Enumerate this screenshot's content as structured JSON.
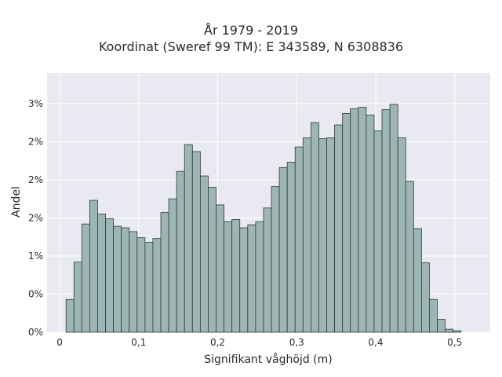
{
  "chart_data": {
    "type": "bar",
    "title": "År 1979 - 2019",
    "subtitle": "Koordinat (Sweref 99 TM): E 343589, N 6308836",
    "xlabel": "Signifikant våghöjd (m)",
    "ylabel": "Andel",
    "xlim": [
      -0.016,
      0.545
    ],
    "ylim": [
      0,
      0.034
    ],
    "grid": true,
    "x_ticks": [
      {
        "value": 0,
        "label": "0"
      },
      {
        "value": 0.1,
        "label": "0,1"
      },
      {
        "value": 0.2,
        "label": "0,2"
      },
      {
        "value": 0.3,
        "label": "0,3"
      },
      {
        "value": 0.4,
        "label": "0,4"
      },
      {
        "value": 0.5,
        "label": "0,5"
      }
    ],
    "y_ticks": [
      {
        "value": 0,
        "label": "0%"
      },
      {
        "value": 0.005,
        "label": "0%"
      },
      {
        "value": 0.01,
        "label": "1%"
      },
      {
        "value": 0.015,
        "label": "2%"
      },
      {
        "value": 0.02,
        "label": "2%"
      },
      {
        "value": 0.025,
        "label": "2%"
      },
      {
        "value": 0.03,
        "label": "3%"
      }
    ],
    "bin_start": 0.008,
    "bin_width": 0.01,
    "values": [
      0.0043,
      0.0092,
      0.0142,
      0.0173,
      0.0155,
      0.0149,
      0.0139,
      0.0137,
      0.0132,
      0.0124,
      0.0118,
      0.0123,
      0.0157,
      0.0175,
      0.0211,
      0.0246,
      0.0237,
      0.0205,
      0.019,
      0.0167,
      0.0145,
      0.0148,
      0.0137,
      0.0141,
      0.0145,
      0.0163,
      0.0191,
      0.0216,
      0.0223,
      0.0243,
      0.0255,
      0.0275,
      0.0254,
      0.0255,
      0.0272,
      0.0287,
      0.0293,
      0.0295,
      0.0285,
      0.0264,
      0.0292,
      0.0299,
      0.0255,
      0.0198,
      0.0136,
      0.0091,
      0.0043,
      0.0017,
      0.0004,
      0.0002
    ],
    "colors": {
      "bar_fill": "#9db5b4",
      "bar_edge": "#2f3b3a",
      "plot_background": "#e9e9f1",
      "grid": "#ffffff"
    }
  }
}
